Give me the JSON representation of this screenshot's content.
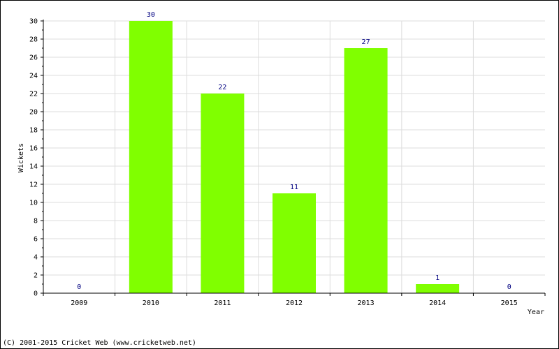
{
  "chart_data": {
    "type": "bar",
    "categories": [
      "2009",
      "2010",
      "2011",
      "2012",
      "2013",
      "2014",
      "2015"
    ],
    "values": [
      0,
      30,
      22,
      11,
      27,
      1,
      0
    ],
    "xlabel": "Year",
    "ylabel": "Wickets",
    "ylim": [
      0,
      30
    ],
    "yticks": [
      0,
      2,
      4,
      6,
      8,
      10,
      12,
      14,
      16,
      18,
      20,
      22,
      24,
      26,
      28,
      30
    ],
    "grid": true,
    "bar_color": "#80ff00",
    "value_label_color": "#000080",
    "grid_color": "#dddddd"
  },
  "footer": {
    "copyright": "(C) 2001-2015 Cricket Web (www.cricketweb.net)"
  }
}
